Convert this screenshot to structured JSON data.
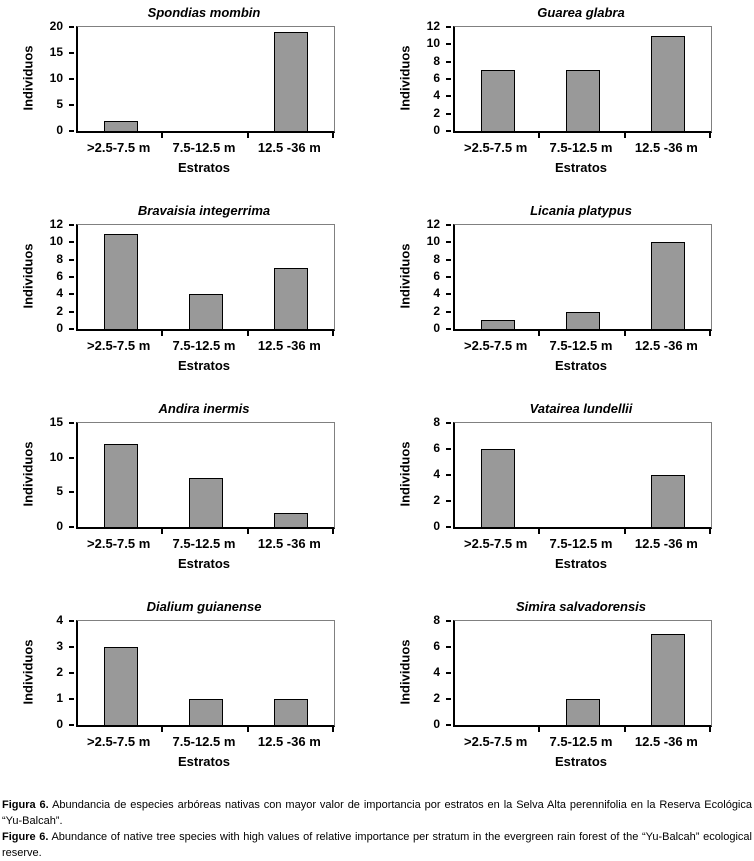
{
  "figure": {
    "background": "#ffffff"
  },
  "caption": {
    "es_label": "Figura 6.",
    "es_text": "Abundancia de especies arbóreas nativas con mayor valor de importancia por estratos en la Selva Alta perennifolia en la Reserva Ecológica “Yu-Balcah”.",
    "en_label": "Figure 6.",
    "en_text": "Abundance of native tree species with high values of relative importance per stratum in the evergreen rain forest of the “Yu-Balcah” ecological reserve."
  },
  "chart_style": {
    "bar_fill": "#999999",
    "bar_border": "#000000",
    "frame_border": "#808080",
    "axis_color": "#000000",
    "text_color": "#000000"
  },
  "chart_data": [
    {
      "type": "bar",
      "title": "Spondias mombin",
      "categories": [
        ">2.5-7.5 m",
        "7.5-12.5 m",
        "12.5 -36 m"
      ],
      "values": [
        2,
        0,
        19
      ],
      "xlabel": "Estratos",
      "ylabel": "Individuos",
      "ylim": [
        0,
        20
      ],
      "yticks": [
        0,
        5,
        10,
        15,
        20
      ],
      "grid": false,
      "legend": "none"
    },
    {
      "type": "bar",
      "title": "Guarea glabra",
      "categories": [
        ">2.5-7.5 m",
        "7.5-12.5 m",
        "12.5 -36 m"
      ],
      "values": [
        7,
        7,
        11
      ],
      "xlabel": "Estratos",
      "ylabel": "Individuos",
      "ylim": [
        0,
        12
      ],
      "yticks": [
        0,
        2,
        4,
        6,
        8,
        10,
        12
      ],
      "grid": false,
      "legend": "none"
    },
    {
      "type": "bar",
      "title": "Bravaisia integerrima",
      "categories": [
        ">2.5-7.5 m",
        "7.5-12.5 m",
        "12.5 -36 m"
      ],
      "values": [
        11,
        4,
        7
      ],
      "xlabel": "Estratos",
      "ylabel": "Individuos",
      "ylim": [
        0,
        12
      ],
      "yticks": [
        0,
        2,
        4,
        6,
        8,
        10,
        12
      ],
      "grid": false,
      "legend": "none"
    },
    {
      "type": "bar",
      "title": "Licania platypus",
      "categories": [
        ">2.5-7.5 m",
        "7.5-12.5 m",
        "12.5 -36 m"
      ],
      "values": [
        1,
        2,
        10
      ],
      "xlabel": "Estratos",
      "ylabel": "Individuos",
      "ylim": [
        0,
        12
      ],
      "yticks": [
        0,
        2,
        4,
        6,
        8,
        10,
        12
      ],
      "grid": false,
      "legend": "none"
    },
    {
      "type": "bar",
      "title": "Andira inermis",
      "categories": [
        ">2.5-7.5 m",
        "7.5-12.5 m",
        "12.5 -36 m"
      ],
      "values": [
        12,
        7,
        2
      ],
      "xlabel": "Estratos",
      "ylabel": "Individuos",
      "ylim": [
        0,
        15
      ],
      "yticks": [
        0,
        5,
        10,
        15
      ],
      "grid": false,
      "legend": "none"
    },
    {
      "type": "bar",
      "title": "Vatairea lundellii",
      "categories": [
        ">2.5-7.5 m",
        "7.5-12.5 m",
        "12.5 -36 m"
      ],
      "values": [
        6,
        0,
        4
      ],
      "xlabel": "Estratos",
      "ylabel": "Individuos",
      "ylim": [
        0,
        8
      ],
      "yticks": [
        0,
        2,
        4,
        6,
        8
      ],
      "grid": false,
      "legend": "none"
    },
    {
      "type": "bar",
      "title": "Dialium guianense",
      "categories": [
        ">2.5-7.5 m",
        "7.5-12.5 m",
        "12.5 -36 m"
      ],
      "values": [
        3,
        1,
        1
      ],
      "xlabel": "Estratos",
      "ylabel": "Individuos",
      "ylim": [
        0,
        4
      ],
      "yticks": [
        0,
        1,
        2,
        3,
        4
      ],
      "grid": false,
      "legend": "none"
    },
    {
      "type": "bar",
      "title": "Simira salvadorensis",
      "categories": [
        ">2.5-7.5 m",
        "7.5-12.5 m",
        "12.5 -36 m"
      ],
      "values": [
        0,
        2,
        7
      ],
      "xlabel": "Estratos",
      "ylabel": "Individuos",
      "ylim": [
        0,
        8
      ],
      "yticks": [
        0,
        2,
        4,
        6,
        8
      ],
      "grid": false,
      "legend": "none"
    }
  ]
}
